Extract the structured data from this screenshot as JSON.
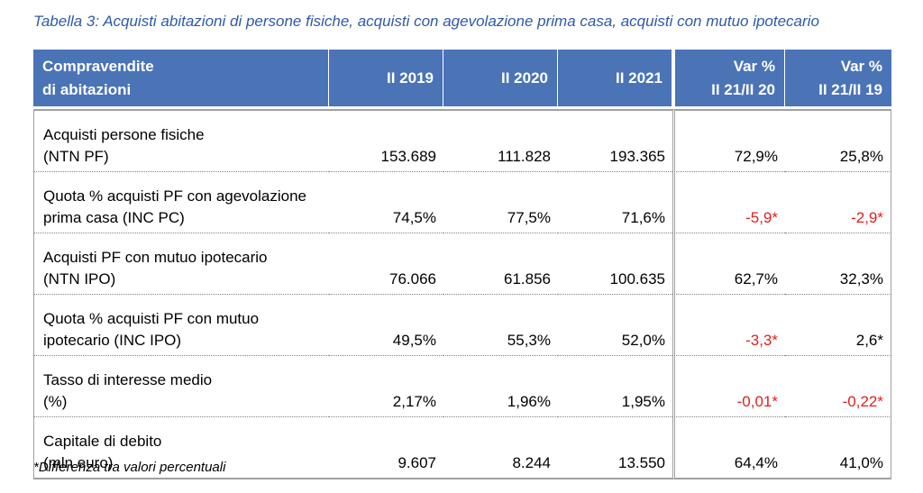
{
  "caption": "Tabella 3: Acquisti abitazioni di persone fisiche, acquisti con agevolazione prima casa, acquisti con mutuo ipotecario",
  "header": {
    "col0_line1": "Compravendite",
    "col0_line2": "di abitazioni",
    "col1": "II 2019",
    "col2": "II 2020",
    "col3": "II 2021",
    "col4_line1": "Var %",
    "col4_line2": "II 21/II 20",
    "col5_line1": "Var %",
    "col5_line2": "II 21/II 19"
  },
  "rows": [
    {
      "label1": "Acquisti persone fisiche",
      "label2": "(NTN PF)",
      "v2019": "153.689",
      "v2020": "111.828",
      "v2021": "193.365",
      "var2120": "72,9%",
      "var2119": "25,8%"
    },
    {
      "label1": "Quota % acquisti PF con agevolazione",
      "label2": "prima casa (INC PC)",
      "v2019": "74,5%",
      "v2020": "77,5%",
      "v2021": "71,6%",
      "var2120": "-5,9*",
      "var2119": "-2,9*"
    },
    {
      "label1": "Acquisti PF con mutuo ipotecario",
      "label2": "(NTN IPO)",
      "v2019": "76.066",
      "v2020": "61.856",
      "v2021": "100.635",
      "var2120": "62,7%",
      "var2119": "32,3%"
    },
    {
      "label1": "Quota % acquisti PF con mutuo",
      "label2": "ipotecario (INC IPO)",
      "v2019": "49,5%",
      "v2020": "55,3%",
      "v2021": "52,0%",
      "var2120": "-3,3*",
      "var2119": "2,6*"
    },
    {
      "label1": "Tasso di interesse medio",
      "label2": "(%)",
      "v2019": "2,17%",
      "v2020": "1,96%",
      "v2021": "1,95%",
      "var2120": "-0,01*",
      "var2119": "-0,22*"
    },
    {
      "label1": "Capitale di debito",
      "label2": "(mln euro)",
      "v2019": "9.607",
      "v2020": "8.244",
      "v2021": "13.550",
      "var2120": "64,4%",
      "var2119": "41,0%"
    }
  ],
  "footnote": "*Differenza tra valori percentuali",
  "colors": {
    "header_bg": "#4A74B6",
    "caption": "#2E5AA8",
    "negative": "#E0201B"
  }
}
